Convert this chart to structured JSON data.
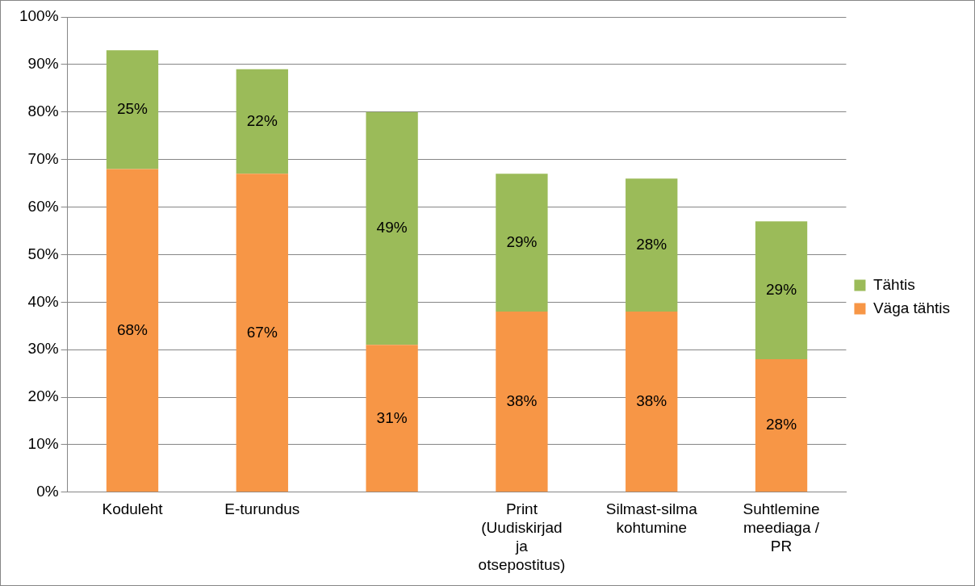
{
  "chart_data": {
    "type": "bar",
    "stacked": true,
    "categories": [
      "Koduleht",
      "E-turundus",
      null,
      "Print (Uudiskirjad ja otsepostitus)",
      "Silmast-silma kohtumine",
      "Suhtlemine meediaga / PR"
    ],
    "series": [
      {
        "name": "Väga tähtis",
        "color": "#f79646",
        "values": [
          68,
          67,
          31,
          38,
          38,
          28
        ],
        "value_labels": [
          "68%",
          "67%",
          "31%",
          "38%",
          "38%",
          "28%"
        ]
      },
      {
        "name": "Tähtis",
        "color": "#9bbb59",
        "values": [
          25,
          22,
          49,
          29,
          28,
          29
        ],
        "value_labels": [
          "25%",
          "22%",
          "49%",
          "29%",
          "28%",
          "29%"
        ]
      }
    ],
    "ylim": [
      0,
      100
    ],
    "yticks": [
      {
        "value": 0,
        "label": "0%"
      },
      {
        "value": 10,
        "label": "10%"
      },
      {
        "value": 20,
        "label": "20%"
      },
      {
        "value": 30,
        "label": "30%"
      },
      {
        "value": 40,
        "label": "40%"
      },
      {
        "value": 50,
        "label": "50%"
      },
      {
        "value": 60,
        "label": "60%"
      },
      {
        "value": 70,
        "label": "70%"
      },
      {
        "value": 80,
        "label": "80%"
      },
      {
        "value": 90,
        "label": "90%"
      },
      {
        "value": 100,
        "label": "100%"
      }
    ],
    "grid": "y",
    "legend": "right"
  }
}
